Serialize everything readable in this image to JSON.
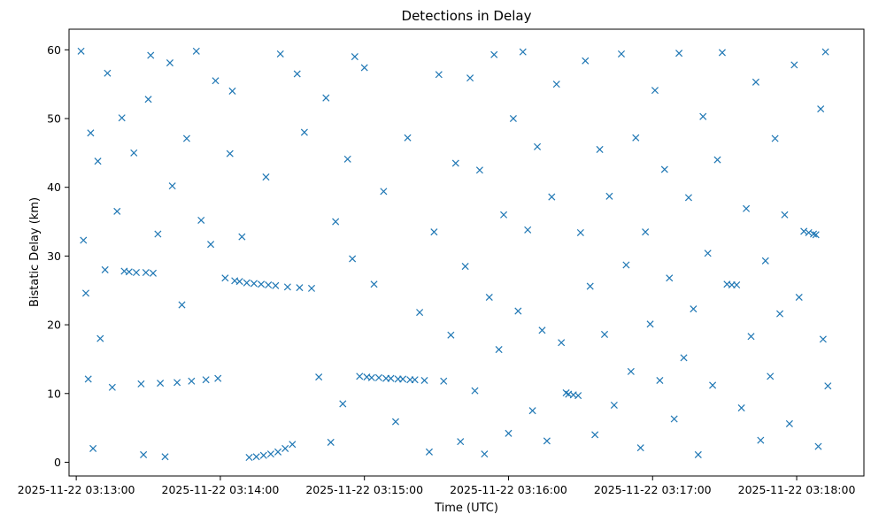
{
  "chart_data": {
    "type": "scatter",
    "title": "Detections in Delay",
    "xlabel": "Time (UTC)",
    "ylabel": "Bistatic Delay (km)",
    "x_start": "2025-11-22 03:12:57",
    "x_end": "2025-11-22 03:18:28",
    "ylim": [
      -2,
      63
    ],
    "xticks": [
      "2025-11-22 03:13:00",
      "2025-11-22 03:14:00",
      "2025-11-22 03:15:00",
      "2025-11-22 03:16:00",
      "2025-11-22 03:17:00",
      "2025-11-22 03:18:00"
    ],
    "yticks": [
      0,
      10,
      20,
      30,
      40,
      50,
      60
    ],
    "marker": "x",
    "color": "#1f77b4",
    "grid": false,
    "legend": "none",
    "series": [
      {
        "points": [
          [
            "2025-11-22 03:13:02",
            59.8
          ],
          [
            "2025-11-22 03:13:03",
            32.3
          ],
          [
            "2025-11-22 03:13:04",
            24.6
          ],
          [
            "2025-11-22 03:13:05",
            12.1
          ],
          [
            "2025-11-22 03:13:06",
            47.9
          ],
          [
            "2025-11-22 03:13:07",
            2.0
          ],
          [
            "2025-11-22 03:13:09",
            43.8
          ],
          [
            "2025-11-22 03:13:10",
            18.0
          ],
          [
            "2025-11-22 03:13:12",
            28.0
          ],
          [
            "2025-11-22 03:13:13",
            56.6
          ],
          [
            "2025-11-22 03:13:15",
            10.9
          ],
          [
            "2025-11-22 03:13:17",
            36.5
          ],
          [
            "2025-11-22 03:13:19",
            50.1
          ],
          [
            "2025-11-22 03:13:20",
            27.8
          ],
          [
            "2025-11-22 03:13:22",
            27.7
          ],
          [
            "2025-11-22 03:13:24",
            45.0
          ],
          [
            "2025-11-22 03:13:25",
            27.6
          ],
          [
            "2025-11-22 03:13:27",
            11.4
          ],
          [
            "2025-11-22 03:13:28",
            1.1
          ],
          [
            "2025-11-22 03:13:29",
            27.6
          ],
          [
            "2025-11-22 03:13:30",
            52.8
          ],
          [
            "2025-11-22 03:13:31",
            59.2
          ],
          [
            "2025-11-22 03:13:32",
            27.5
          ],
          [
            "2025-11-22 03:13:34",
            33.2
          ],
          [
            "2025-11-22 03:13:35",
            11.5
          ],
          [
            "2025-11-22 03:13:37",
            0.8
          ],
          [
            "2025-11-22 03:13:39",
            58.1
          ],
          [
            "2025-11-22 03:13:40",
            40.2
          ],
          [
            "2025-11-22 03:13:42",
            11.6
          ],
          [
            "2025-11-22 03:13:44",
            22.9
          ],
          [
            "2025-11-22 03:13:46",
            47.1
          ],
          [
            "2025-11-22 03:13:48",
            11.8
          ],
          [
            "2025-11-22 03:13:50",
            59.8
          ],
          [
            "2025-11-22 03:13:52",
            35.2
          ],
          [
            "2025-11-22 03:13:54",
            12.0
          ],
          [
            "2025-11-22 03:13:56",
            31.7
          ],
          [
            "2025-11-22 03:13:58",
            55.5
          ],
          [
            "2025-11-22 03:13:59",
            12.2
          ],
          [
            "2025-11-22 03:14:02",
            26.8
          ],
          [
            "2025-11-22 03:14:04",
            44.9
          ],
          [
            "2025-11-22 03:14:05",
            54.0
          ],
          [
            "2025-11-22 03:14:06",
            26.4
          ],
          [
            "2025-11-22 03:14:08",
            26.3
          ],
          [
            "2025-11-22 03:14:09",
            32.8
          ],
          [
            "2025-11-22 03:14:11",
            26.1
          ],
          [
            "2025-11-22 03:14:12",
            0.7
          ],
          [
            "2025-11-22 03:14:14",
            26.0
          ],
          [
            "2025-11-22 03:14:15",
            0.8
          ],
          [
            "2025-11-22 03:14:17",
            25.9
          ],
          [
            "2025-11-22 03:14:18",
            1.0
          ],
          [
            "2025-11-22 03:14:19",
            41.5
          ],
          [
            "2025-11-22 03:14:20",
            25.8
          ],
          [
            "2025-11-22 03:14:21",
            1.2
          ],
          [
            "2025-11-22 03:14:23",
            25.7
          ],
          [
            "2025-11-22 03:14:24",
            1.5
          ],
          [
            "2025-11-22 03:14:25",
            59.4
          ],
          [
            "2025-11-22 03:14:27",
            2.0
          ],
          [
            "2025-11-22 03:14:28",
            25.5
          ],
          [
            "2025-11-22 03:14:30",
            2.6
          ],
          [
            "2025-11-22 03:14:32",
            56.5
          ],
          [
            "2025-11-22 03:14:33",
            25.4
          ],
          [
            "2025-11-22 03:14:35",
            48.0
          ],
          [
            "2025-11-22 03:14:38",
            25.3
          ],
          [
            "2025-11-22 03:14:41",
            12.4
          ],
          [
            "2025-11-22 03:14:44",
            53.0
          ],
          [
            "2025-11-22 03:14:46",
            2.9
          ],
          [
            "2025-11-22 03:14:48",
            35.0
          ],
          [
            "2025-11-22 03:14:51",
            8.5
          ],
          [
            "2025-11-22 03:14:53",
            44.1
          ],
          [
            "2025-11-22 03:14:55",
            29.6
          ],
          [
            "2025-11-22 03:14:56",
            59.0
          ],
          [
            "2025-11-22 03:14:58",
            12.5
          ],
          [
            "2025-11-22 03:15:00",
            57.4
          ],
          [
            "2025-11-22 03:15:01",
            12.4
          ],
          [
            "2025-11-22 03:15:03",
            12.3
          ],
          [
            "2025-11-22 03:15:04",
            25.9
          ],
          [
            "2025-11-22 03:15:06",
            12.3
          ],
          [
            "2025-11-22 03:15:08",
            39.4
          ],
          [
            "2025-11-22 03:15:09",
            12.2
          ],
          [
            "2025-11-22 03:15:11",
            12.2
          ],
          [
            "2025-11-22 03:15:13",
            5.9
          ],
          [
            "2025-11-22 03:15:14",
            12.1
          ],
          [
            "2025-11-22 03:15:16",
            12.1
          ],
          [
            "2025-11-22 03:15:18",
            47.2
          ],
          [
            "2025-11-22 03:15:19",
            12.0
          ],
          [
            "2025-11-22 03:15:21",
            12.0
          ],
          [
            "2025-11-22 03:15:23",
            21.8
          ],
          [
            "2025-11-22 03:15:25",
            11.9
          ],
          [
            "2025-11-22 03:15:27",
            1.5
          ],
          [
            "2025-11-22 03:15:29",
            33.5
          ],
          [
            "2025-11-22 03:15:31",
            56.4
          ],
          [
            "2025-11-22 03:15:33",
            11.8
          ],
          [
            "2025-11-22 03:15:36",
            18.5
          ],
          [
            "2025-11-22 03:15:38",
            43.5
          ],
          [
            "2025-11-22 03:15:40",
            3.0
          ],
          [
            "2025-11-22 03:15:42",
            28.5
          ],
          [
            "2025-11-22 03:15:44",
            55.9
          ],
          [
            "2025-11-22 03:15:46",
            10.4
          ],
          [
            "2025-11-22 03:15:48",
            42.5
          ],
          [
            "2025-11-22 03:15:50",
            1.2
          ],
          [
            "2025-11-22 03:15:52",
            24.0
          ],
          [
            "2025-11-22 03:15:54",
            59.3
          ],
          [
            "2025-11-22 03:15:56",
            16.4
          ],
          [
            "2025-11-22 03:15:58",
            36.0
          ],
          [
            "2025-11-22 03:16:00",
            4.2
          ],
          [
            "2025-11-22 03:16:02",
            50.0
          ],
          [
            "2025-11-22 03:16:04",
            22.0
          ],
          [
            "2025-11-22 03:16:06",
            59.7
          ],
          [
            "2025-11-22 03:16:08",
            33.8
          ],
          [
            "2025-11-22 03:16:10",
            7.5
          ],
          [
            "2025-11-22 03:16:12",
            45.9
          ],
          [
            "2025-11-22 03:16:14",
            19.2
          ],
          [
            "2025-11-22 03:16:16",
            3.1
          ],
          [
            "2025-11-22 03:16:18",
            38.6
          ],
          [
            "2025-11-22 03:16:20",
            55.0
          ],
          [
            "2025-11-22 03:16:22",
            17.4
          ],
          [
            "2025-11-22 03:16:24",
            10.1
          ],
          [
            "2025-11-22 03:16:25",
            9.9
          ],
          [
            "2025-11-22 03:16:27",
            9.8
          ],
          [
            "2025-11-22 03:16:29",
            9.7
          ],
          [
            "2025-11-22 03:16:30",
            33.4
          ],
          [
            "2025-11-22 03:16:32",
            58.4
          ],
          [
            "2025-11-22 03:16:34",
            25.6
          ],
          [
            "2025-11-22 03:16:36",
            4.0
          ],
          [
            "2025-11-22 03:16:38",
            45.5
          ],
          [
            "2025-11-22 03:16:40",
            18.6
          ],
          [
            "2025-11-22 03:16:42",
            38.7
          ],
          [
            "2025-11-22 03:16:44",
            8.3
          ],
          [
            "2025-11-22 03:16:47",
            59.4
          ],
          [
            "2025-11-22 03:16:49",
            28.7
          ],
          [
            "2025-11-22 03:16:51",
            13.2
          ],
          [
            "2025-11-22 03:16:53",
            47.2
          ],
          [
            "2025-11-22 03:16:55",
            2.1
          ],
          [
            "2025-11-22 03:16:57",
            33.5
          ],
          [
            "2025-11-22 03:16:59",
            20.1
          ],
          [
            "2025-11-22 03:17:01",
            54.1
          ],
          [
            "2025-11-22 03:17:03",
            11.9
          ],
          [
            "2025-11-22 03:17:05",
            42.6
          ],
          [
            "2025-11-22 03:17:07",
            26.8
          ],
          [
            "2025-11-22 03:17:09",
            6.3
          ],
          [
            "2025-11-22 03:17:11",
            59.5
          ],
          [
            "2025-11-22 03:17:13",
            15.2
          ],
          [
            "2025-11-22 03:17:15",
            38.5
          ],
          [
            "2025-11-22 03:17:17",
            22.3
          ],
          [
            "2025-11-22 03:17:19",
            1.1
          ],
          [
            "2025-11-22 03:17:21",
            50.3
          ],
          [
            "2025-11-22 03:17:23",
            30.4
          ],
          [
            "2025-11-22 03:17:25",
            11.2
          ],
          [
            "2025-11-22 03:17:27",
            44.0
          ],
          [
            "2025-11-22 03:17:29",
            59.6
          ],
          [
            "2025-11-22 03:17:31",
            25.9
          ],
          [
            "2025-11-22 03:17:33",
            25.8
          ],
          [
            "2025-11-22 03:17:35",
            25.8
          ],
          [
            "2025-11-22 03:17:37",
            7.9
          ],
          [
            "2025-11-22 03:17:39",
            36.9
          ],
          [
            "2025-11-22 03:17:41",
            18.3
          ],
          [
            "2025-11-22 03:17:43",
            55.3
          ],
          [
            "2025-11-22 03:17:45",
            3.2
          ],
          [
            "2025-11-22 03:17:47",
            29.3
          ],
          [
            "2025-11-22 03:17:49",
            12.5
          ],
          [
            "2025-11-22 03:17:51",
            47.1
          ],
          [
            "2025-11-22 03:17:53",
            21.6
          ],
          [
            "2025-11-22 03:17:55",
            36.0
          ],
          [
            "2025-11-22 03:17:57",
            5.6
          ],
          [
            "2025-11-22 03:17:59",
            57.8
          ],
          [
            "2025-11-22 03:18:01",
            24.0
          ],
          [
            "2025-11-22 03:18:03",
            33.6
          ],
          [
            "2025-11-22 03:18:05",
            33.4
          ],
          [
            "2025-11-22 03:18:07",
            33.2
          ],
          [
            "2025-11-22 03:18:08",
            33.1
          ],
          [
            "2025-11-22 03:18:09",
            2.3
          ],
          [
            "2025-11-22 03:18:10",
            51.4
          ],
          [
            "2025-11-22 03:18:11",
            17.9
          ],
          [
            "2025-11-22 03:18:12",
            59.7
          ],
          [
            "2025-11-22 03:18:13",
            11.1
          ]
        ]
      }
    ]
  }
}
